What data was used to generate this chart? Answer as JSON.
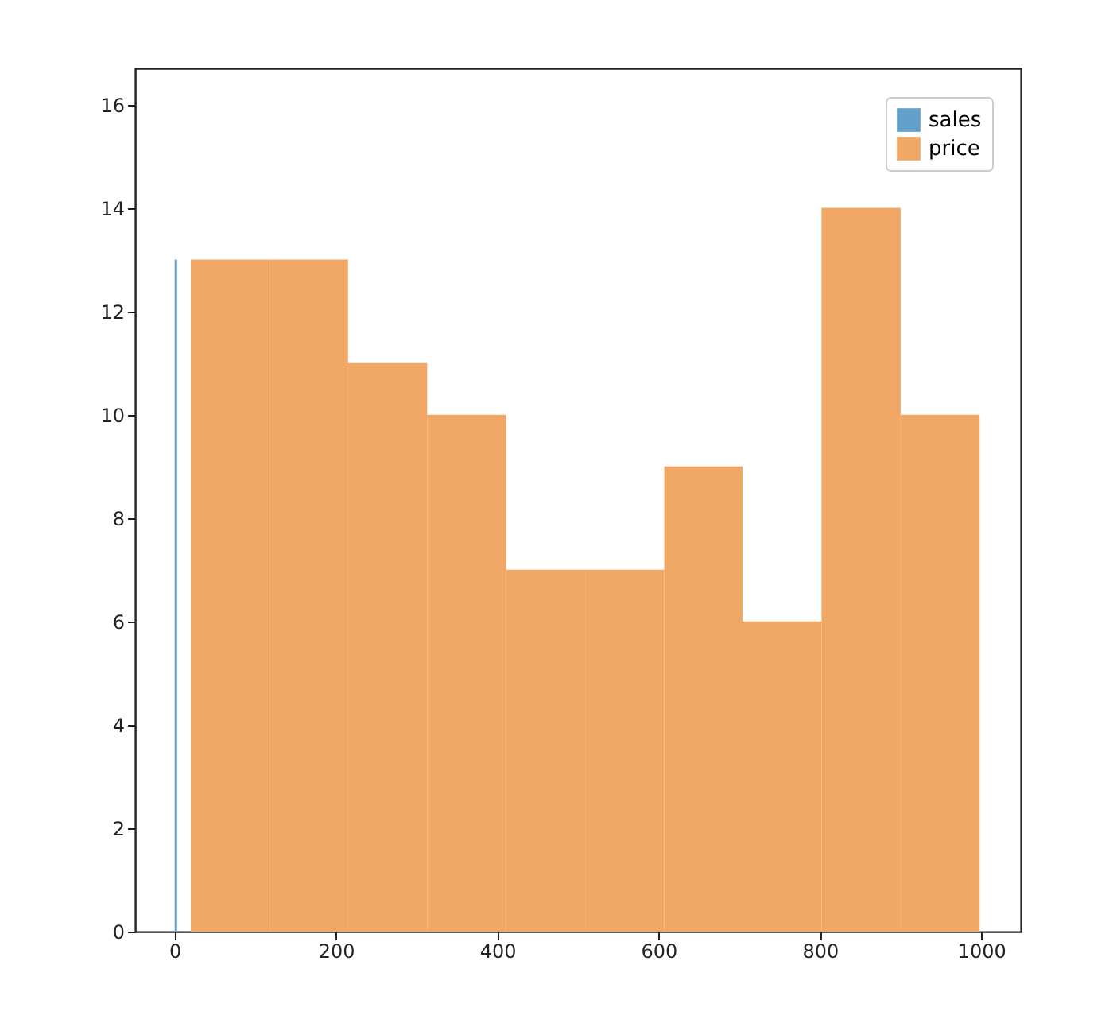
{
  "chart_data": {
    "type": "histogram",
    "bins": [
      0,
      3,
      20,
      118,
      215,
      313,
      411,
      509,
      607,
      704,
      802,
      900,
      998
    ],
    "series": [
      {
        "name": "sales",
        "color": "#62a0ca",
        "values": [
          13,
          null,
          null,
          null,
          null,
          null,
          null,
          null,
          null,
          null,
          null,
          null
        ]
      },
      {
        "name": "price",
        "color": "#f1a765",
        "values": [
          null,
          null,
          13,
          13,
          11,
          10,
          7,
          7,
          9,
          6,
          14,
          10
        ]
      }
    ],
    "xlim": [
      -49,
      1049
    ],
    "xticks": [
      0,
      200,
      400,
      600,
      800,
      1000
    ],
    "ylim": [
      0,
      16.7
    ],
    "yticks": [
      0,
      2,
      4,
      6,
      8,
      10,
      12,
      14,
      16
    ],
    "legend": "top right",
    "grid": false
  }
}
